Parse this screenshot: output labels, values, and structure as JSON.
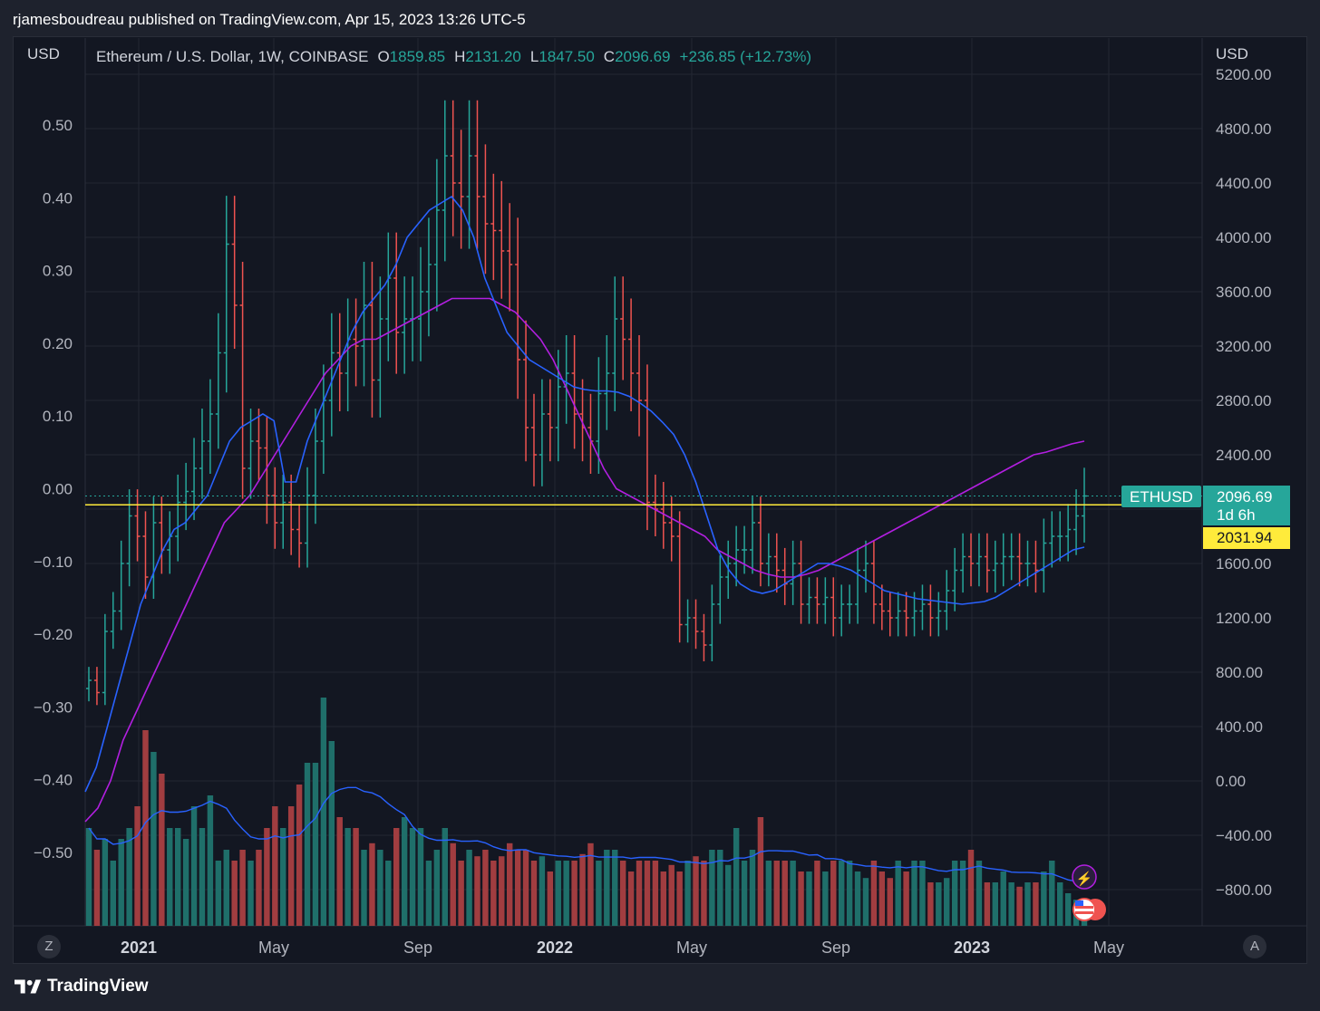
{
  "header": {
    "publish_line": "rjamesboudreau published on TradingView.com, Apr 15, 2023 13:26 UTC-5"
  },
  "legend": {
    "symbol": "Ethereum / U.S. Dollar, 1W, COINBASE",
    "o_label": "O",
    "o_value": "1859.85",
    "h_label": "H",
    "h_value": "2131.20",
    "l_label": "L",
    "l_value": "1847.50",
    "c_label": "C",
    "c_value": "2096.69",
    "change": "+236.85 (+12.73%)"
  },
  "axes": {
    "left_unit": "USD",
    "right_unit": "USD",
    "left_ticks": [
      "0.50",
      "0.40",
      "0.30",
      "0.20",
      "0.10",
      "0.00",
      "−0.10",
      "−0.20",
      "−0.30",
      "−0.40",
      "−0.50"
    ],
    "right_ticks": [
      "5200.00",
      "4800.00",
      "4400.00",
      "4000.00",
      "3600.00",
      "3200.00",
      "2800.00",
      "2400.00",
      "1600.00",
      "1200.00",
      "800.00",
      "400.00",
      "0.00",
      "−400.00",
      "−800.00"
    ],
    "time_ticks": [
      {
        "label": "2021",
        "bold": true
      },
      {
        "label": "May",
        "bold": false
      },
      {
        "label": "Sep",
        "bold": false
      },
      {
        "label": "2022",
        "bold": true
      },
      {
        "label": "May",
        "bold": false
      },
      {
        "label": "Sep",
        "bold": false
      },
      {
        "label": "2023",
        "bold": true
      },
      {
        "label": "May",
        "bold": false
      }
    ],
    "z_button": "Z",
    "a_button": "A"
  },
  "badges": {
    "symbol_tag": "ETHUSD",
    "last_price": "2096.69",
    "countdown": "1d 6h",
    "level_price": "2031.94"
  },
  "colors": {
    "up": "#26a69a",
    "down": "#ef5350",
    "vol_up": "#1f6f6a",
    "vol_down": "#a13d40",
    "ma_fast": "#2962ff",
    "ma_slow": "#b21fe0",
    "level": "#ffeb3b",
    "accent_tag": "#26a69a"
  },
  "footer": {
    "brand": "TradingView"
  },
  "chart_data": {
    "type": "ohlc",
    "title": "Ethereum / U.S. Dollar, 1W, COINBASE",
    "price_axis_range": [
      -1000,
      5400
    ],
    "horizontal_level": 2031.94,
    "last_close": 2096.69,
    "weeks_start": "2020-12-21",
    "close": [
      740,
      650,
      1100,
      1250,
      1600,
      1950,
      1800,
      1500,
      1900,
      1700,
      1800,
      2050,
      2130,
      2300,
      2500,
      2700,
      3150,
      3950,
      3500,
      2300,
      2500,
      2450,
      2100,
      1900,
      2050,
      1850,
      1750,
      2100,
      2500,
      2800,
      3150,
      3000,
      3250,
      3200,
      3500,
      2950,
      3400,
      3700,
      3300,
      3400,
      3400,
      3600,
      3800,
      4200,
      4600,
      4400,
      4300,
      4600,
      4300,
      4100,
      4050,
      3900,
      3800,
      3100,
      2600,
      2400,
      2700,
      2600,
      2900,
      3000,
      2700,
      2600,
      2500,
      2850,
      3000,
      3400,
      3250,
      3000,
      2800,
      2050,
      2000,
      1900,
      1800,
      1150,
      1200,
      1100,
      1000,
      1300,
      1500,
      1600,
      1700,
      1700,
      1900,
      1600,
      1650,
      1550,
      1450,
      1600,
      1300,
      1350,
      1300,
      1350,
      1200,
      1300,
      1300,
      1550,
      1600,
      1300,
      1250,
      1200,
      1250,
      1200,
      1250,
      1300,
      1200,
      1250,
      1400,
      1550,
      1650,
      1600,
      1650,
      1550,
      1600,
      1650,
      1650,
      1600,
      1600,
      1550,
      1750,
      1800,
      1800,
      1850,
      1950,
      2096.69
    ],
    "volume": [
      0.45,
      0.35,
      0.4,
      0.3,
      0.4,
      0.45,
      0.55,
      0.9,
      0.8,
      0.7,
      0.45,
      0.45,
      0.4,
      0.55,
      0.45,
      0.6,
      0.3,
      0.35,
      0.3,
      0.35,
      0.3,
      0.35,
      0.45,
      0.55,
      0.45,
      0.55,
      0.65,
      0.75,
      0.75,
      1.05,
      0.85,
      0.5,
      0.45,
      0.45,
      0.35,
      0.38,
      0.35,
      0.3,
      0.45,
      0.5,
      0.45,
      0.45,
      0.3,
      0.35,
      0.45,
      0.38,
      0.3,
      0.35,
      0.32,
      0.35,
      0.3,
      0.32,
      0.38,
      0.35,
      0.35,
      0.3,
      0.32,
      0.25,
      0.3,
      0.3,
      0.3,
      0.33,
      0.38,
      0.3,
      0.35,
      0.35,
      0.3,
      0.25,
      0.3,
      0.3,
      0.3,
      0.25,
      0.28,
      0.25,
      0.3,
      0.32,
      0.3,
      0.35,
      0.35,
      0.28,
      0.45,
      0.3,
      0.35,
      0.5,
      0.3,
      0.3,
      0.3,
      0.3,
      0.25,
      0.25,
      0.3,
      0.25,
      0.3,
      0.3,
      0.3,
      0.25,
      0.22,
      0.3,
      0.25,
      0.22,
      0.3,
      0.25,
      0.3,
      0.3,
      0.2,
      0.2,
      0.22,
      0.3,
      0.3,
      0.35,
      0.3,
      0.2,
      0.2,
      0.25,
      0.2,
      0.18,
      0.2,
      0.2,
      0.25,
      0.3,
      0.2,
      0.15,
      0.12,
      0.1
    ],
    "ma_fast": [
      -80,
      100,
      400,
      700,
      1000,
      1300,
      1500,
      1700,
      1850,
      1900,
      2000,
      2100,
      2300,
      2500,
      2600,
      2650,
      2700,
      2650,
      2200,
      2200,
      2500,
      2700,
      2900,
      3100,
      3300,
      3450,
      3550,
      3650,
      3800,
      4000,
      4100,
      4200,
      4250,
      4300,
      4200,
      4000,
      3700,
      3500,
      3300,
      3200,
      3100,
      3050,
      3000,
      2950,
      2900,
      2880,
      2870,
      2870,
      2860,
      2830,
      2780,
      2720,
      2640,
      2550,
      2400,
      2200,
      1950,
      1700,
      1550,
      1450,
      1400,
      1380,
      1400,
      1450,
      1500,
      1550,
      1600,
      1600,
      1580,
      1550,
      1500,
      1450,
      1400,
      1380,
      1360,
      1340,
      1330,
      1320,
      1310,
      1300,
      1310,
      1320,
      1350,
      1400,
      1450,
      1500,
      1550,
      1600,
      1650,
      1700,
      1720
    ],
    "ma_slow": [
      -300,
      -200,
      0,
      300,
      500,
      700,
      900,
      1100,
      1300,
      1500,
      1700,
      1900,
      2000,
      2100,
      2250,
      2400,
      2550,
      2700,
      2850,
      3000,
      3100,
      3200,
      3250,
      3250,
      3300,
      3350,
      3400,
      3450,
      3500,
      3550,
      3550,
      3550,
      3550,
      3500,
      3450,
      3350,
      3250,
      3100,
      2900,
      2700,
      2500,
      2300,
      2150,
      2100,
      2050,
      2000,
      1950,
      1900,
      1850,
      1800,
      1700,
      1650,
      1600,
      1550,
      1520,
      1500,
      1500,
      1520,
      1550,
      1600,
      1650,
      1700,
      1750,
      1800,
      1850,
      1900,
      1950,
      2000,
      2050,
      2100,
      2150,
      2200,
      2250,
      2300,
      2350,
      2400,
      2420,
      2450,
      2480,
      2500
    ]
  }
}
